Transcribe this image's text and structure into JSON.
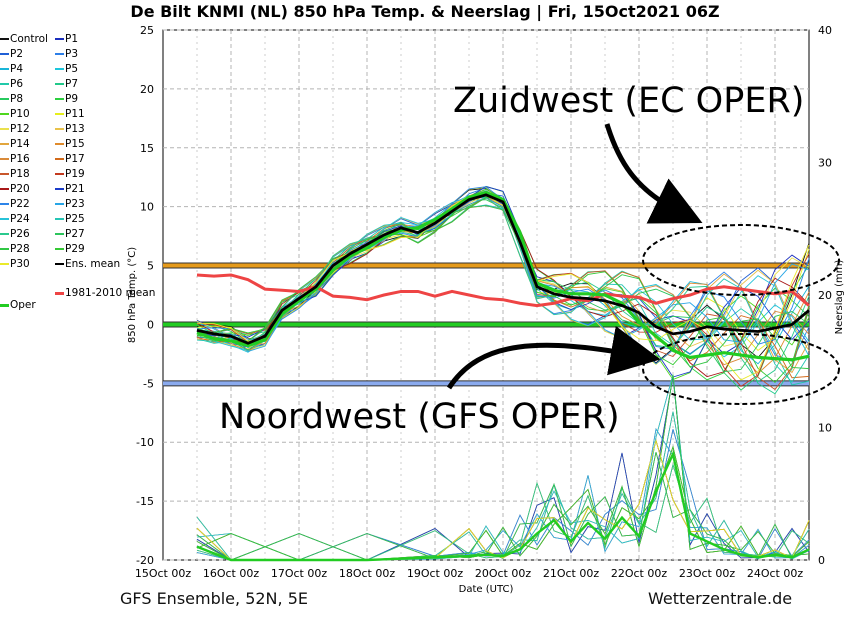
{
  "title": "De Bilt KNMI  (NL)  850 hPa Temp. & Neerslag | Fri, 15Oct2021 06Z",
  "footer": {
    "left": "GFS Ensemble, 52N, 5E",
    "right": "Wetterzentrale.de"
  },
  "annotations": {
    "upper": "Zuidwest (EC OPER)",
    "lower": "Noordwest (GFS OPER)"
  },
  "colors": {
    "reference_orange": "#e59a1a",
    "reference_green": "#22cc22",
    "reference_blue": "#8aaaee",
    "ens_mean": "#000000",
    "clim_mean": "#ee4444",
    "oper": "#22cc22"
  },
  "legend": [
    {
      "label": "Control",
      "color": "#111111"
    },
    {
      "label": "P1",
      "color": "#1a2ebd"
    },
    {
      "label": "P2",
      "color": "#1f5fd6"
    },
    {
      "label": "P3",
      "color": "#2d7fe8"
    },
    {
      "label": "P4",
      "color": "#19b5d8"
    },
    {
      "label": "P5",
      "color": "#1cc6dc"
    },
    {
      "label": "P6",
      "color": "#20c9a9"
    },
    {
      "label": "P7",
      "color": "#22c98a"
    },
    {
      "label": "P8",
      "color": "#27c95e"
    },
    {
      "label": "P9",
      "color": "#2ccf3f"
    },
    {
      "label": "P10",
      "color": "#4ed71e"
    },
    {
      "label": "P11",
      "color": "#e6ee1c"
    },
    {
      "label": "P12",
      "color": "#eae04d"
    },
    {
      "label": "P13",
      "color": "#e9c24a"
    },
    {
      "label": "P14",
      "color": "#e2a63d"
    },
    {
      "label": "P15",
      "color": "#e08b2c"
    },
    {
      "label": "P16",
      "color": "#d98a3a"
    },
    {
      "label": "P17",
      "color": "#d26a1a"
    },
    {
      "label": "P18",
      "color": "#c8562b"
    },
    {
      "label": "P19",
      "color": "#c43a1f"
    },
    {
      "label": "P20",
      "color": "#a81818"
    },
    {
      "label": "P21",
      "color": "#1a3bc9"
    },
    {
      "label": "P22",
      "color": "#2c84e9"
    },
    {
      "label": "P23",
      "color": "#28a6e6"
    },
    {
      "label": "P24",
      "color": "#27c2d8"
    },
    {
      "label": "P25",
      "color": "#25c5b5"
    },
    {
      "label": "P26",
      "color": "#2ac98d"
    },
    {
      "label": "P27",
      "color": "#2dc55c"
    },
    {
      "label": "P28",
      "color": "#31c744"
    },
    {
      "label": "P29",
      "color": "#35c935"
    },
    {
      "label": "P30",
      "color": "#eaea2a"
    },
    {
      "label": "Ens. mean",
      "color": "#000000"
    },
    {
      "label": "1981-2010 mean",
      "color": "#ee4444"
    },
    {
      "label": "Oper",
      "color": "#22cc22"
    }
  ],
  "chart_data": {
    "type": "line",
    "title": "De Bilt KNMI  (NL)  850 hPa Temp. & Neerslag | Fri, 15Oct2021 06Z",
    "xlabel": "Date (UTC)",
    "ylabel": "850 hPa Temp. (°C)",
    "y2label": "Neerslag (mm)",
    "xlim": [
      0,
      228
    ],
    "x_ticks": [
      {
        "h": 0,
        "label": "15Oct 00z"
      },
      {
        "h": 24,
        "label": "16Oct 00z"
      },
      {
        "h": 48,
        "label": "17Oct 00z"
      },
      {
        "h": 72,
        "label": "18Oct 00z"
      },
      {
        "h": 96,
        "label": "19Oct 00z"
      },
      {
        "h": 120,
        "label": "20Oct 00z"
      },
      {
        "h": 144,
        "label": "21Oct 00z"
      },
      {
        "h": 168,
        "label": "22Oct 00z"
      },
      {
        "h": 192,
        "label": "23Oct 00z"
      },
      {
        "h": 216,
        "label": "24Oct 00z"
      }
    ],
    "ylim": [
      -20,
      25
    ],
    "y_ticks": [
      25,
      20,
      15,
      10,
      5,
      0,
      -5,
      -10,
      -15,
      -20
    ],
    "y2lim": [
      0,
      40
    ],
    "y2_ticks": [
      40,
      30,
      20,
      10,
      0
    ],
    "grid": true,
    "reference_lines": [
      {
        "y": 5,
        "color": "#e59a1a"
      },
      {
        "y": 0,
        "color": "#22cc22"
      },
      {
        "y": -5,
        "color": "#8aaaee"
      }
    ],
    "ens_mean": {
      "x": [
        12,
        18,
        24,
        30,
        36,
        42,
        48,
        54,
        60,
        66,
        72,
        78,
        84,
        90,
        96,
        102,
        108,
        114,
        120,
        126,
        132,
        138,
        144,
        150,
        156,
        162,
        168,
        174,
        180,
        186,
        192,
        198,
        204,
        210,
        216,
        222,
        228
      ],
      "y": [
        -0.5,
        -0.8,
        -1.0,
        -1.6,
        -1.0,
        1.2,
        2.2,
        3.2,
        5.0,
        6.0,
        6.8,
        7.6,
        8.2,
        7.8,
        8.6,
        9.6,
        10.6,
        11.0,
        10.4,
        7.0,
        3.2,
        2.6,
        2.3,
        2.2,
        2.0,
        1.6,
        1.0,
        -0.2,
        -0.8,
        -0.6,
        -0.2,
        -0.4,
        -0.5,
        -0.6,
        -0.3,
        0.0,
        1.2
      ]
    },
    "clim_mean": {
      "x": [
        12,
        18,
        24,
        30,
        36,
        42,
        48,
        54,
        60,
        66,
        72,
        78,
        84,
        90,
        96,
        102,
        108,
        114,
        120,
        126,
        132,
        138,
        144,
        150,
        156,
        162,
        168,
        174,
        180,
        186,
        192,
        198,
        204,
        210,
        216,
        222,
        228
      ],
      "y": [
        4.2,
        4.1,
        4.2,
        3.8,
        3.0,
        2.9,
        2.8,
        3.2,
        2.4,
        2.3,
        2.1,
        2.5,
        2.8,
        2.8,
        2.4,
        2.8,
        2.5,
        2.2,
        2.1,
        1.8,
        1.6,
        1.8,
        2.2,
        2.0,
        2.6,
        2.4,
        2.3,
        1.8,
        2.2,
        2.5,
        3.0,
        3.2,
        3.0,
        2.8,
        2.6,
        2.8,
        1.6
      ]
    },
    "oper_t850": {
      "x": [
        12,
        18,
        24,
        30,
        36,
        42,
        48,
        54,
        60,
        66,
        72,
        78,
        84,
        90,
        96,
        102,
        108,
        114,
        120,
        126,
        132,
        138,
        144,
        150,
        156,
        162,
        168,
        174,
        180,
        186,
        192,
        198,
        204,
        210,
        216,
        222,
        228
      ],
      "y": [
        -0.7,
        -1.2,
        -1.4,
        -1.8,
        -1.3,
        0.9,
        2.0,
        3.0,
        4.6,
        5.8,
        6.5,
        7.4,
        8.0,
        8.2,
        8.9,
        9.8,
        10.8,
        11.2,
        10.6,
        7.8,
        3.5,
        2.9,
        2.6,
        2.6,
        2.5,
        1.8,
        0.2,
        -1.0,
        -2.2,
        -2.8,
        -2.6,
        -2.4,
        -2.6,
        -2.8,
        -2.9,
        -3.0,
        -2.7
      ]
    },
    "oper_precip_mm": {
      "x": [
        12,
        24,
        48,
        72,
        96,
        108,
        114,
        120,
        126,
        132,
        138,
        144,
        150,
        156,
        162,
        168,
        174,
        180,
        186,
        192,
        198,
        204,
        210,
        216,
        222,
        228
      ],
      "y": [
        1.0,
        0.0,
        0.0,
        0.0,
        0.2,
        0.3,
        0.4,
        0.3,
        0.8,
        2.0,
        3.0,
        1.4,
        2.8,
        1.6,
        3.2,
        1.8,
        5.2,
        8.0,
        2.0,
        1.4,
        0.8,
        0.4,
        0.2,
        0.4,
        0.2,
        0.8
      ]
    }
  }
}
